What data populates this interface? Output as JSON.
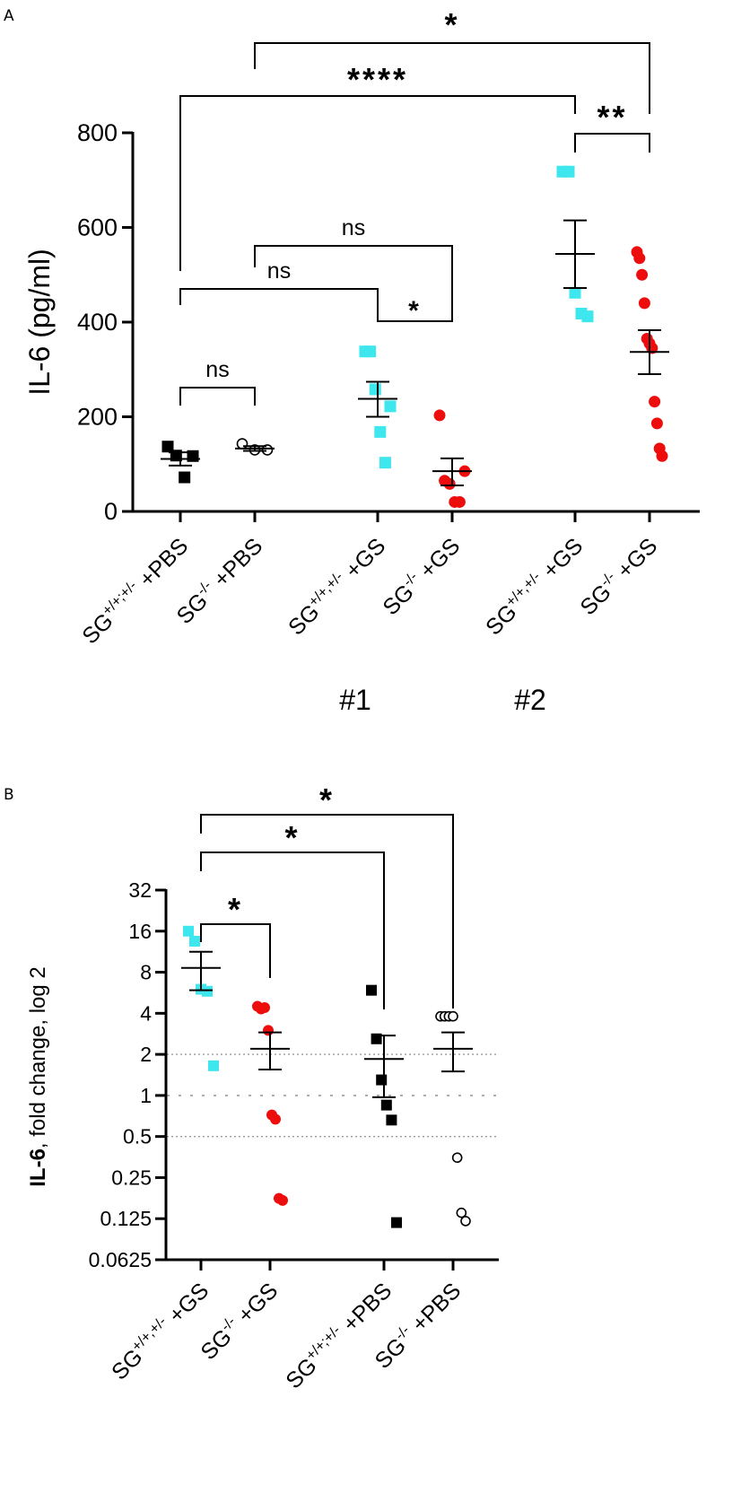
{
  "colors": {
    "cyan": "#3ee6ee",
    "red": "#ee0d0d",
    "black": "#000000",
    "axis": "#000000",
    "grid": "#9a9a9a"
  },
  "chart_data": [
    {
      "panel_label": "A",
      "type": "scatter",
      "ylabel": "IL-6 (pg/ml)",
      "ylim": [
        0,
        800
      ],
      "yticks": [
        0,
        200,
        400,
        600,
        800
      ],
      "tick_labels": [
        "0",
        "200",
        "400",
        "600",
        "800"
      ],
      "groups": [
        {
          "base": "SG",
          "sup": "+/+;+/-",
          "suffix": " +PBS",
          "color": "black",
          "marker": "square",
          "values": [
            137,
            118,
            72,
            117
          ],
          "mean": 111,
          "sem_low": 97,
          "sem_high": 125
        },
        {
          "base": "SG",
          "sup": "-/-",
          "suffix": " +PBS",
          "color": "black",
          "marker": "open-circle",
          "values": [
            143,
            130,
            130
          ],
          "mean": 133,
          "sem_low": 128,
          "sem_high": 138
        },
        {
          "base": "SG",
          "sup": "+/+,+/-",
          "suffix": " +GS",
          "color": "cyan",
          "marker": "square",
          "values": [
            338,
            338,
            258,
            168,
            103,
            222
          ],
          "mean": 238,
          "sem_low": 200,
          "sem_high": 274
        },
        {
          "base": "SG",
          "sup": "-/-",
          "suffix": " +GS",
          "color": "red",
          "marker": "circle",
          "values": [
            203,
            65,
            58,
            20,
            20,
            85
          ],
          "mean": 85,
          "sem_low": 55,
          "sem_high": 112
        },
        {
          "base": "SG",
          "sup": "+/+,+/-",
          "suffix": " +GS",
          "color": "cyan",
          "marker": "square",
          "values": [
            718,
            718,
            462,
            418,
            412
          ],
          "mean": 544,
          "sem_low": 472,
          "sem_high": 615
        },
        {
          "base": "SG",
          "sup": "-/-",
          "suffix": " +GS",
          "color": "red",
          "marker": "circle",
          "values": [
            548,
            535,
            500,
            440,
            365,
            355,
            345,
            232,
            186,
            133,
            117
          ],
          "mean": 337,
          "sem_low": 290,
          "sem_high": 383
        }
      ],
      "brackets": [
        {
          "g1": 0,
          "g2": 1,
          "label": "ns"
        },
        {
          "g1": 0,
          "g2": 2,
          "label": "ns"
        },
        {
          "g1": 1,
          "g2": 3,
          "label": "ns"
        },
        {
          "g1": 2,
          "g2": 3,
          "label": "*"
        },
        {
          "g1": 4,
          "g2": 5,
          "label": "**"
        },
        {
          "g1": 0,
          "g2": 4,
          "label": "****"
        },
        {
          "g1": 1,
          "g2": 5,
          "label": "*"
        }
      ],
      "set_labels": [
        "#1",
        "#2"
      ]
    },
    {
      "panel_label": "B",
      "type": "scatter",
      "ylabel_bold": "IL-6",
      "ylabel_rest": ", fold change, log 2",
      "yscale": "log2",
      "ylim": [
        0.0625,
        32
      ],
      "yticks": [
        0.0625,
        0.125,
        0.25,
        0.5,
        1,
        2,
        4,
        8,
        16,
        32
      ],
      "tick_labels": [
        "0.0625",
        "0.125",
        "0.25",
        "0.5",
        "1",
        "2",
        "4",
        "8",
        "16",
        "32"
      ],
      "reference_lines": [
        0.5,
        1,
        2
      ],
      "groups": [
        {
          "base": "SG",
          "sup": "+/+,+/-",
          "suffix": " +GS",
          "color": "cyan",
          "marker": "square",
          "values": [
            16,
            13.5,
            6,
            5.8,
            1.65
          ],
          "mean": 8.6,
          "sem_low": 5.9,
          "sem_high": 11.3
        },
        {
          "base": "SG",
          "sup": "-/-",
          "suffix": " +GS",
          "color": "red",
          "marker": "circle",
          "values": [
            4.5,
            4.3,
            4.4,
            3,
            0.72,
            0.67,
            0.176,
            0.17
          ],
          "mean": 2.2,
          "sem_low": 1.55,
          "sem_high": 2.9
        },
        {
          "base": "SG",
          "sup": "+/+;+/-",
          "suffix": " +PBS",
          "color": "black",
          "marker": "square",
          "values": [
            5.9,
            2.6,
            1.3,
            0.85,
            0.66,
            0.117
          ],
          "mean": 1.85,
          "sem_low": 0.97,
          "sem_high": 2.75
        },
        {
          "base": "SG",
          "sup": "-/-",
          "suffix": " +PBS",
          "color": "black",
          "marker": "open-circle",
          "values": [
            3.8,
            3.8,
            3.8,
            3.8,
            0.35,
            0.138,
            0.12
          ],
          "mean": 2.2,
          "sem_low": 1.5,
          "sem_high": 2.9
        }
      ],
      "brackets": [
        {
          "g1": 0,
          "g2": 1,
          "label": "*"
        },
        {
          "g1": 0,
          "g2": 2,
          "label": "*"
        },
        {
          "g1": 0,
          "g2": 3,
          "label": "*"
        }
      ]
    }
  ]
}
